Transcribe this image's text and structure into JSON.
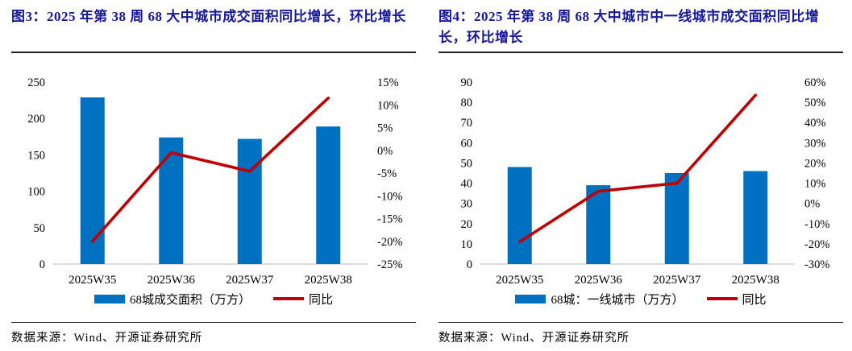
{
  "colors": {
    "bar": "#0070C0",
    "line": "#C00000",
    "title": "#16169B",
    "baseline": "#C8C8C8",
    "rule": "#1F1F1F"
  },
  "figures": [
    {
      "title": "图3：2025 年第 38 周 68 大中城市成交面积同比增长，环比增长",
      "source": "数据来源：Wind、开源证券研究所",
      "chart_data": {
        "type": "bar",
        "subtype": "bar+line dual axis",
        "categories": [
          "2025W35",
          "2025W36",
          "2025W37",
          "2025W38"
        ],
        "series": [
          {
            "name": "68城成交面积（万方）",
            "type": "bar",
            "axis": "left",
            "values": [
              229,
              174,
              172,
              189
            ]
          },
          {
            "name": "同比",
            "type": "line",
            "axis": "right",
            "values": [
              -20,
              -0.5,
              -4.6,
              11.5
            ]
          }
        ],
        "left_axis": {
          "min": 0,
          "max": 250,
          "ticks": [
            "0",
            "50",
            "100",
            "150",
            "200",
            "250"
          ]
        },
        "right_axis": {
          "min": -25,
          "max": 15,
          "ticks": [
            "-25%",
            "-20%",
            "-15%",
            "-10%",
            "-5%",
            "0%",
            "5%",
            "10%",
            "15%"
          ]
        },
        "grid": false,
        "legend_position": "bottom",
        "legend": [
          {
            "label": "68城成交面积（万方）",
            "type": "bar"
          },
          {
            "label": "同比",
            "type": "line"
          }
        ]
      }
    },
    {
      "title": "图4：2025 年第 38 周 68 大中城市中一线城市成交面积同比增长，环比增长",
      "source": "数据来源：Wind、开源证券研究所",
      "chart_data": {
        "type": "bar",
        "subtype": "bar+line dual axis",
        "categories": [
          "2025W35",
          "2025W36",
          "2025W37",
          "2025W38"
        ],
        "series": [
          {
            "name": "68城：一线城市（万方）",
            "type": "bar",
            "axis": "left",
            "values": [
              48,
              39,
              45,
              46
            ]
          },
          {
            "name": "同比",
            "type": "line",
            "axis": "right",
            "values": [
              -19,
              6,
              10,
              53.5
            ]
          }
        ],
        "left_axis": {
          "min": 0,
          "max": 90,
          "ticks": [
            "0",
            "10",
            "20",
            "30",
            "40",
            "50",
            "60",
            "70",
            "80",
            "90"
          ]
        },
        "right_axis": {
          "min": -30,
          "max": 60,
          "ticks": [
            "-30%",
            "-20%",
            "-10%",
            "0%",
            "10%",
            "20%",
            "30%",
            "40%",
            "50%",
            "60%"
          ]
        },
        "grid": false,
        "legend_position": "bottom",
        "legend": [
          {
            "label": "68城：一线城市（万方）",
            "type": "bar"
          },
          {
            "label": "同比",
            "type": "line"
          }
        ]
      }
    }
  ]
}
